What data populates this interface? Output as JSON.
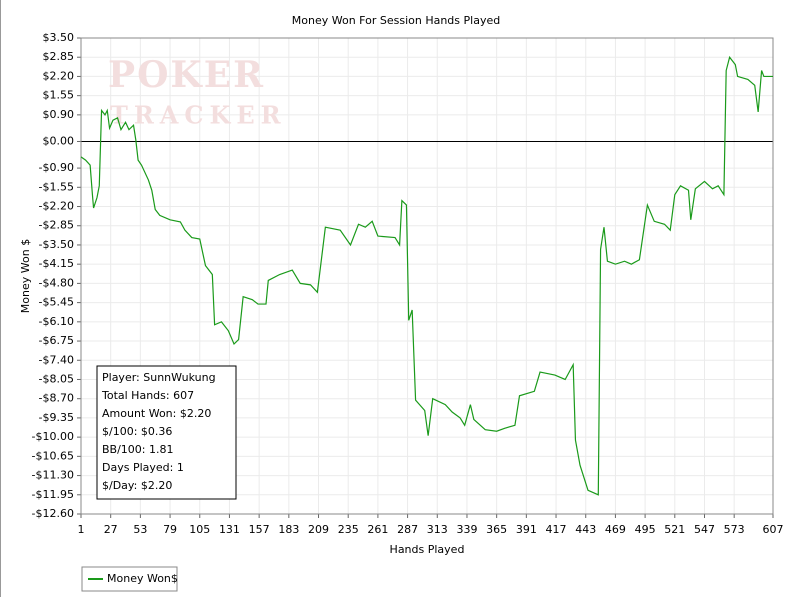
{
  "chart_data": {
    "type": "line",
    "title": "Money Won For Session Hands Played",
    "x_label": "Hands Played",
    "y_label": "Money Won $",
    "watermark": [
      "POKER",
      "TRACKER"
    ],
    "grid": true,
    "legend": "bottom-left",
    "xlim": [
      1,
      607
    ],
    "xticks": [
      1,
      27,
      53,
      79,
      105,
      131,
      157,
      183,
      209,
      235,
      261,
      287,
      313,
      339,
      365,
      391,
      417,
      443,
      469,
      495,
      521,
      547,
      573,
      607
    ],
    "ylim": [
      -12.6,
      3.5
    ],
    "yticks": [
      {
        "value": 3.5,
        "label": "$3.50"
      },
      {
        "value": 2.85,
        "label": "$2.85"
      },
      {
        "value": 2.2,
        "label": "$2.20"
      },
      {
        "value": 1.55,
        "label": "$1.55"
      },
      {
        "value": 0.9,
        "label": "$0.90"
      },
      {
        "value": 0,
        "label": "$0.00"
      },
      {
        "value": -0.9,
        "label": "-$0.90"
      },
      {
        "value": -1.55,
        "label": "-$1.55"
      },
      {
        "value": -2.2,
        "label": "-$2.20"
      },
      {
        "value": -2.85,
        "label": "-$2.85"
      },
      {
        "value": -3.5,
        "label": "-$3.50"
      },
      {
        "value": -4.15,
        "label": "-$4.15"
      },
      {
        "value": -4.8,
        "label": "-$4.80"
      },
      {
        "value": -5.45,
        "label": "-$5.45"
      },
      {
        "value": -6.1,
        "label": "-$6.10"
      },
      {
        "value": -6.75,
        "label": "-$6.75"
      },
      {
        "value": -7.4,
        "label": "-$7.40"
      },
      {
        "value": -8.05,
        "label": "-$8.05"
      },
      {
        "value": -8.7,
        "label": "-$8.70"
      },
      {
        "value": -9.35,
        "label": "-$9.35"
      },
      {
        "value": -10,
        "label": "-$10.00"
      },
      {
        "value": -10.65,
        "label": "-$10.65"
      },
      {
        "value": -11.3,
        "label": "-$11.30"
      },
      {
        "value": -11.95,
        "label": "-$11.95"
      },
      {
        "value": -12.6,
        "label": "-$12.60"
      }
    ],
    "x": [
      1,
      5,
      9,
      11,
      12,
      15,
      17,
      19,
      22,
      24,
      26,
      29,
      33,
      36,
      40,
      43,
      47,
      49,
      51,
      54,
      60,
      63,
      66,
      70,
      79,
      88,
      92,
      98,
      105,
      110,
      116,
      118,
      124,
      130,
      135,
      139,
      143,
      151,
      156,
      163,
      165,
      175,
      186,
      193,
      202,
      208,
      215,
      228,
      237,
      244,
      250,
      256,
      261,
      276,
      280,
      282,
      286,
      288,
      291,
      294,
      302,
      305,
      309,
      320,
      326,
      333,
      337,
      342,
      345,
      355,
      365,
      372,
      381,
      385,
      398,
      403,
      416,
      425,
      432,
      434,
      438,
      445,
      454,
      456,
      459,
      462,
      469,
      477,
      483,
      490,
      497,
      503,
      512,
      517,
      521,
      526,
      533,
      535,
      539,
      547,
      554,
      559,
      564,
      566,
      569,
      574,
      576,
      585,
      591,
      594,
      597,
      599,
      607
    ],
    "series": [
      {
        "name": "Money Won$",
        "color": "#1a9a1a",
        "values": [
          -0.52,
          -0.63,
          -0.8,
          -1.8,
          -2.25,
          -1.9,
          -1.5,
          1.05,
          0.9,
          1.05,
          0.45,
          0.72,
          0.8,
          0.4,
          0.65,
          0.4,
          0.55,
          0.05,
          -0.63,
          -0.8,
          -1.3,
          -1.65,
          -2.3,
          -2.5,
          -2.65,
          -2.72,
          -3.0,
          -3.25,
          -3.3,
          -4.2,
          -4.5,
          -6.2,
          -6.1,
          -6.4,
          -6.85,
          -6.7,
          -5.25,
          -5.35,
          -5.5,
          -5.5,
          -4.7,
          -4.5,
          -4.35,
          -4.8,
          -4.85,
          -5.1,
          -2.9,
          -3.0,
          -3.5,
          -2.8,
          -2.9,
          -2.7,
          -3.2,
          -3.25,
          -3.5,
          -2.0,
          -2.15,
          -6.05,
          -5.7,
          -8.75,
          -9.1,
          -9.95,
          -8.7,
          -8.9,
          -9.15,
          -9.35,
          -9.6,
          -8.9,
          -9.4,
          -9.75,
          -9.8,
          -9.7,
          -9.6,
          -8.6,
          -8.45,
          -7.8,
          -7.9,
          -8.05,
          -7.55,
          -10.1,
          -10.95,
          -11.8,
          -11.95,
          -3.65,
          -2.9,
          -4.05,
          -4.15,
          -4.05,
          -4.15,
          -4.0,
          -2.15,
          -2.7,
          -2.8,
          -3.0,
          -1.8,
          -1.5,
          -1.65,
          -2.65,
          -1.6,
          -1.35,
          -1.6,
          -1.5,
          -1.8,
          2.4,
          2.85,
          2.6,
          2.2,
          2.1,
          1.9,
          1.0,
          2.4,
          2.2,
          2.2
        ]
      }
    ],
    "stats": [
      "Player: SunnWukung",
      "Total Hands: 607",
      "Amount Won: $2.20",
      "$/100: $0.36",
      "BB/100: 1.81",
      "Days Played: 1",
      "$/Day: $2.20"
    ]
  }
}
